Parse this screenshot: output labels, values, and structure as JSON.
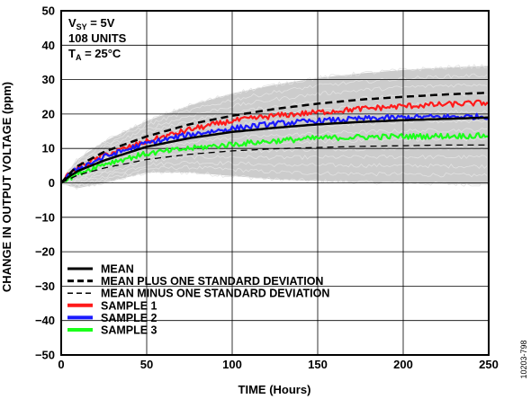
{
  "chart_data": {
    "type": "line",
    "title": "",
    "xlabel": "TIME (Hours)",
    "ylabel": "CHANGE IN OUTPUT VOLTAGE (ppm)",
    "xlim": [
      0,
      250
    ],
    "ylim": [
      -50,
      50
    ],
    "x_ticks": [
      "0",
      "50",
      "100",
      "150",
      "200",
      "250"
    ],
    "y_ticks": [
      "50",
      "40",
      "30",
      "20",
      "10",
      "0",
      "−10",
      "−20",
      "−30",
      "−40",
      "−50"
    ],
    "grid": true,
    "legend_position": "bottom-left",
    "conditions": {
      "vsy_prefix": "V",
      "vsy_sub": "SY",
      "vsy_value": " = 5V",
      "units": "108 UNITS",
      "ta_prefix": "T",
      "ta_sub": "A",
      "ta_value": " = 25°C"
    },
    "figure_id": "10203-798",
    "x": [
      0,
      5,
      10,
      25,
      50,
      75,
      100,
      125,
      150,
      175,
      200,
      225,
      250
    ],
    "series": [
      {
        "name": "MEAN",
        "color": "#000000",
        "style": "solid",
        "values": [
          0,
          2,
          3.5,
          6.5,
          10.5,
          13,
          14.8,
          16,
          17,
          17.7,
          18.2,
          18.6,
          19
        ]
      },
      {
        "name": "MEAN PLUS ONE STANDARD DEVIATION",
        "color": "#000000",
        "style": "dashed",
        "values": [
          0,
          2.8,
          5,
          9,
          13.5,
          17,
          19.5,
          21.5,
          23,
          24.2,
          25,
          25.7,
          26.2
        ]
      },
      {
        "name": "MEAN MINUS ONE STANDARD DEVIATION",
        "color": "#000000",
        "style": "dashed-thin",
        "values": [
          0,
          1.2,
          2.3,
          4.3,
          6.8,
          8.3,
          9.3,
          9.9,
          10.3,
          10.6,
          10.8,
          11,
          11
        ]
      },
      {
        "name": "SAMPLE 1",
        "color": "#ff1a1a",
        "style": "noisy",
        "values": [
          0,
          2.5,
          4.5,
          8,
          12,
          15.5,
          18,
          19.5,
          20.5,
          21.5,
          22.3,
          22.8,
          23.3
        ]
      },
      {
        "name": "SAMPLE 2",
        "color": "#1a1aff",
        "style": "noisy",
        "values": [
          0,
          2.4,
          4.2,
          7.5,
          11.5,
          14,
          15.8,
          17.2,
          18,
          18.6,
          19,
          19.2,
          19.3
        ]
      },
      {
        "name": "SAMPLE 3",
        "color": "#1aff1a",
        "style": "noisy",
        "values": [
          0,
          1.5,
          2.8,
          5.5,
          8.5,
          10,
          11.2,
          12.2,
          13,
          13.3,
          13.5,
          13.6,
          13.7
        ]
      }
    ],
    "background_band": {
      "color": "#cccccc",
      "upper": [
        0,
        4,
        7,
        12,
        18,
        22.5,
        26,
        28.5,
        30.5,
        31.8,
        32.8,
        33.5,
        34
      ],
      "lower": [
        0,
        -1,
        -1.5,
        0,
        3,
        3,
        2,
        1,
        0.5,
        0.2,
        0,
        -0.3,
        -0.5
      ]
    }
  }
}
